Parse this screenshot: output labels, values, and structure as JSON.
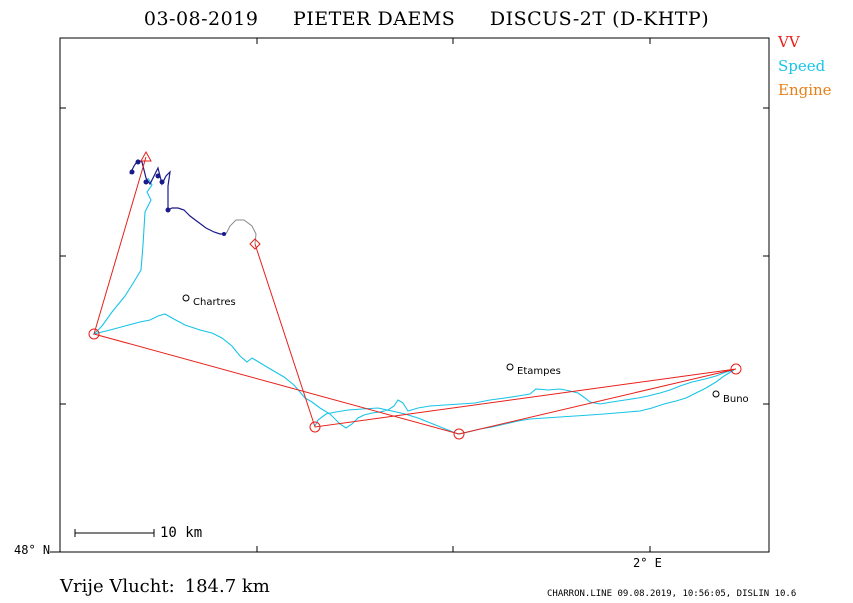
{
  "header": {
    "date": "03-08-2019",
    "pilot": "PIETER DAEMS",
    "glider": "DISCUS-2T (D-KHTP)"
  },
  "legend": {
    "items": [
      {
        "label": "VV",
        "color": "#e8201a"
      },
      {
        "label": "Speed",
        "color": "#18c4e8"
      },
      {
        "label": "Engine",
        "color": "#e88018"
      }
    ]
  },
  "axes": {
    "lat_label": "48° N",
    "lon_label": "2° E"
  },
  "scale": {
    "label": "10 km"
  },
  "places": [
    {
      "name": "Chartres"
    },
    {
      "name": "Etampes"
    },
    {
      "name": "Buno"
    }
  ],
  "summary": {
    "label": "Vrije Vlucht:",
    "value": "184.7 km"
  },
  "footer": {
    "text": "CHARRON.LINE 09.08.2019, 10:56:05, DISLIN 10.6"
  },
  "colors": {
    "task": "#e8201a",
    "speed": "#18c4e8",
    "engine": "#e88018",
    "climb": "#1a1a8c",
    "gray": "#8a8a8a"
  }
}
